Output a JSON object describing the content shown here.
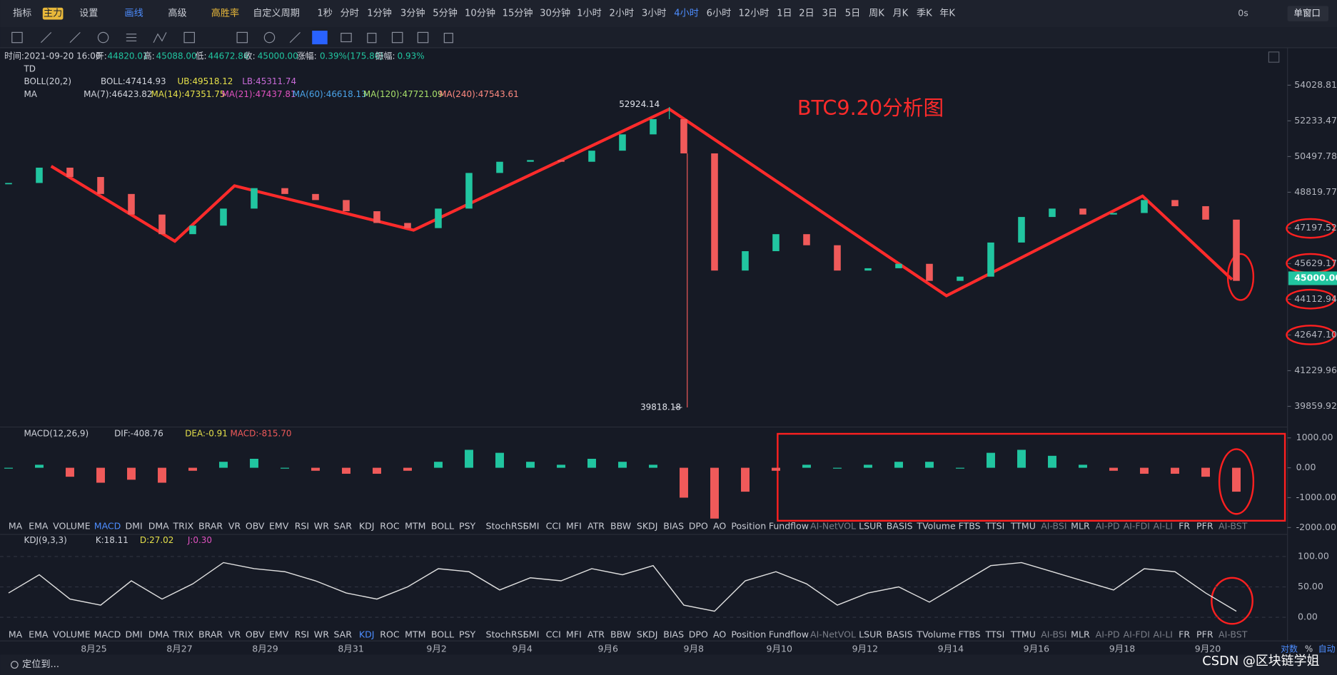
{
  "toolbar": {
    "items": [
      "指标",
      "主力",
      "设置",
      "画线",
      "高级",
      "高胜率",
      "自定义周期"
    ],
    "periods": [
      "1秒",
      "分时",
      "1分钟",
      "3分钟",
      "5分钟",
      "10分钟",
      "15分钟",
      "30分钟",
      "1小时",
      "2小时",
      "3小时",
      "4小时",
      "6小时",
      "12小时",
      "1日",
      "2日",
      "3日",
      "5日",
      "周K",
      "月K",
      "季K",
      "年K"
    ],
    "active_period": "4小时",
    "right": [
      "0s",
      "单窗口"
    ]
  },
  "info": {
    "time": "时间:2021-09-20 16:00",
    "fields": [
      {
        "label": "开:",
        "value": "44820.01"
      },
      {
        "label": "高:",
        "value": "45088.00"
      },
      {
        "label": "低:",
        "value": "44672.86"
      },
      {
        "label": "收:",
        "value": "45000.00"
      },
      {
        "label": "涨幅:",
        "value": "0.39%(175.80)"
      },
      {
        "label": "振幅:",
        "value": "0.93%"
      }
    ]
  },
  "indicators": {
    "td": "TD",
    "boll": [
      "BOLL(20,2)",
      "BOLL:47414.93",
      "UB:49518.12",
      "LB:45311.74"
    ],
    "ma": [
      "MA",
      "MA(7):46423.82",
      "MA(14):47351.75",
      "MA(21):47437.81",
      "MA(60):46618.13",
      "MA(120):47721.09",
      "MA(240):47543.61"
    ],
    "macd": [
      "MACD(12,26,9)",
      "DIF:-408.76",
      "DEA:-0.91",
      "MACD:-815.70"
    ],
    "kdj": [
      "KDJ(9,3,3)",
      "K:18.11",
      "D:27.02",
      "J:0.30"
    ]
  },
  "tabs": [
    "MA",
    "EMA",
    "VOLUME",
    "MACD",
    "DMI",
    "DMA",
    "TRIX",
    "BRAR",
    "VR",
    "OBV",
    "EMV",
    "RSI",
    "WR",
    "SAR",
    "KDJ",
    "ROC",
    "MTM",
    "BOLL",
    "PSY",
    "StochRSI",
    "SMI",
    "CCI",
    "MFI",
    "ATR",
    "BBW",
    "SKDJ",
    "BIAS",
    "DPO",
    "AO",
    "Position",
    "Fundflow",
    "AI-NetVOL",
    "LSUR",
    "BASIS",
    "TVolume",
    "FTBS",
    "TTSI",
    "TTMU",
    "AI-BSI",
    "MLR",
    "AI-PD",
    "AI-FDI",
    "AI-LI",
    "FR",
    "PFR",
    "AI-BST"
  ],
  "footer": {
    "locate": "定位到...",
    "scale": [
      "对数",
      "%",
      "自动"
    ],
    "watermark": "CSDN @区块链学姐"
  },
  "chart_data": [
    {
      "type": "candlestick",
      "title": "BTC9.20分析图",
      "log": true,
      "ylim": [
        39120,
        55710
      ],
      "yticks": [
        54028.81,
        52233.47,
        50497.78,
        48819.77,
        47197.52,
        45629.17,
        44112.94,
        {
          "value": 42647.1,
          "label": "42647.10"
        },
        41229.96,
        39859.92
      ],
      "last_price": {
        "value": 45000,
        "label": "45000.00"
      },
      "high": 52924.14,
      "low": 39818.18,
      "xticks": [
        "8月25",
        "8月27",
        "8月29",
        "8月31",
        "9月2",
        "9月4",
        "9月6",
        "9月8",
        "9月10",
        "9月12",
        "9月14",
        "9月16",
        "9月18",
        "9月20"
      ],
      "up_color": "#21c5a0",
      "down_color": "#f05a5a",
      "values": [
        49250,
        49970,
        49530,
        48740,
        47800,
        46920,
        47300,
        48070,
        49010,
        48740,
        48460,
        47950,
        47420,
        47190,
        48070,
        49720,
        50250,
        50330,
        50250,
        50780,
        51570,
        52320,
        50650,
        45330,
        46170,
        46920,
        46430,
        45330,
        45430,
        45620,
        44890,
        45070,
        46550,
        47690,
        48070,
        47800,
        47870,
        48460,
        48180,
        47570,
        44890
      ]
    },
    {
      "type": "bar",
      "ylim": [
        -2000,
        1250
      ],
      "yticks": [
        {
          "value": 1000,
          "label": "1000.00"
        },
        {
          "value": 0,
          "label": "0.00"
        },
        {
          "value": -1000,
          "label": "-1000.00"
        },
        {
          "value": -2000,
          "label": "-2000.00"
        }
      ],
      "up_color": "#21c5a0",
      "down_color": "#f05a5a",
      "values": [
        0,
        100,
        -300,
        -500,
        -400,
        -500,
        -100,
        200,
        300,
        0,
        -100,
        -200,
        -200,
        -100,
        200,
        600,
        500,
        200,
        100,
        300,
        200,
        100,
        -1000,
        -1700,
        -800,
        -100,
        100,
        0,
        100,
        200,
        200,
        0,
        500,
        600,
        400,
        100,
        -100,
        -200,
        -200,
        -300,
        -800
      ]
    },
    {
      "type": "line",
      "ylim": [
        -22,
        135
      ],
      "yticks": [
        {
          "value": 100,
          "label": "100.00"
        },
        {
          "value": 50,
          "label": "50.00"
        },
        {
          "value": 0,
          "label": "0.00"
        }
      ],
      "series": [
        {
          "name": "K",
          "color": "#e0e0e0",
          "values": [
            40,
            70,
            30,
            20,
            60,
            30,
            55,
            90,
            80,
            75,
            60,
            40,
            30,
            50,
            80,
            75,
            45,
            65,
            60,
            80,
            70,
            85,
            20,
            10,
            60,
            75,
            55,
            20,
            40,
            50,
            25,
            55,
            85,
            90,
            75,
            60,
            45,
            80,
            75,
            40,
            10
          ]
        }
      ]
    }
  ]
}
